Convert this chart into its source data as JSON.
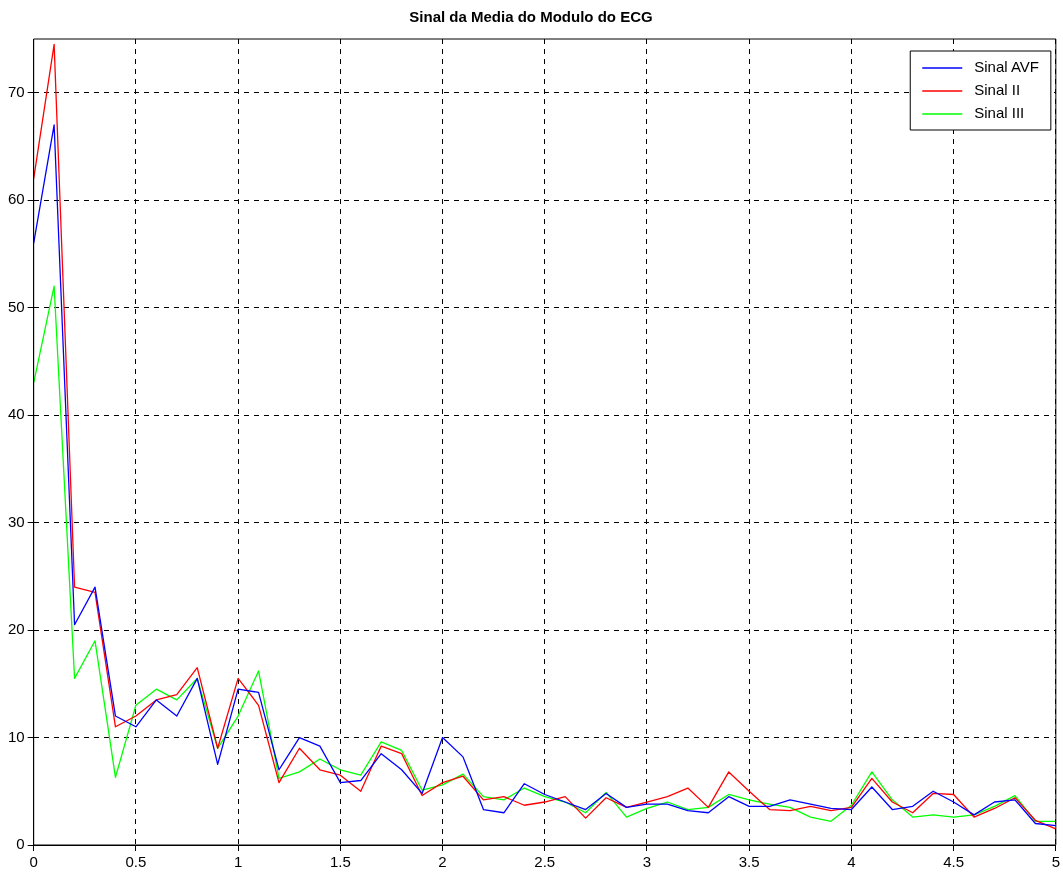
{
  "chart_data": {
    "type": "line",
    "title": "Sinal da Media do Modulo do ECG",
    "x": [
      0,
      0.1,
      0.2,
      0.3,
      0.4,
      0.5,
      0.6,
      0.7,
      0.8,
      0.9,
      1,
      1.1,
      1.2,
      1.3,
      1.4,
      1.5,
      1.6,
      1.7,
      1.8,
      1.9,
      2,
      2.1,
      2.2,
      2.3,
      2.4,
      2.5,
      2.6,
      2.7,
      2.8,
      2.9,
      3,
      3.1,
      3.2,
      3.3,
      3.4,
      3.5,
      3.6,
      3.7,
      3.8,
      3.9,
      4,
      4.1,
      4.2,
      4.3,
      4.4,
      4.5,
      4.6,
      4.7,
      4.8,
      4.9,
      5
    ],
    "series": [
      {
        "name": "Sinal AVF",
        "color": "#0000ff",
        "values": [
          56,
          67,
          20.5,
          24,
          12,
          11,
          13.5,
          12,
          15.5,
          7.5,
          14.5,
          14.2,
          7,
          10,
          9.2,
          5.8,
          6,
          8.5,
          7,
          4.8,
          10,
          8.2,
          3.3,
          3,
          5.7,
          4.7,
          4,
          3.3,
          4.8,
          3.5,
          3.8,
          3.8,
          3.2,
          3,
          4.5,
          3.6,
          3.6,
          4.2,
          3.8,
          3.4,
          3.3,
          5.4,
          3.3,
          3.6,
          5,
          4,
          2.8,
          4,
          4.2,
          2,
          1.8
        ]
      },
      {
        "name": "Sinal II",
        "color": "#ff0000",
        "values": [
          62,
          74.5,
          24,
          23.5,
          11,
          12,
          13.5,
          14,
          16.5,
          9,
          15.5,
          13,
          5.8,
          9,
          7,
          6.5,
          5,
          9.2,
          8.5,
          4.6,
          5.8,
          6.4,
          4.2,
          4.5,
          3.7,
          4,
          4.5,
          2.5,
          4.4,
          3.5,
          4,
          4.5,
          5.3,
          3.5,
          6.8,
          5,
          3.3,
          3.2,
          3.6,
          3.2,
          3.5,
          6.2,
          4,
          3,
          4.8,
          4.7,
          2.6,
          3.4,
          4.4,
          2.3,
          1.5
        ]
      },
      {
        "name": "Sinal III",
        "color": "#00ff00",
        "values": [
          43,
          52,
          15.5,
          19,
          6.3,
          13,
          14.5,
          13.5,
          15.5,
          9,
          12,
          16.2,
          6.2,
          6.8,
          8,
          7,
          6.5,
          9.6,
          8.8,
          5.1,
          5.6,
          6.6,
          4.5,
          4.2,
          5.3,
          4.5,
          4,
          3,
          4.9,
          2.6,
          3.4,
          4,
          3.3,
          3.5,
          4.7,
          4.2,
          3.8,
          3.5,
          2.6,
          2.2,
          3.7,
          6.8,
          4.2,
          2.6,
          2.8,
          2.6,
          2.8,
          3.6,
          4.6,
          2.2,
          2.2
        ]
      }
    ],
    "xlim": [
      0,
      5
    ],
    "xticks": [
      0,
      0.5,
      1,
      1.5,
      2,
      2.5,
      3,
      3.5,
      4,
      4.5,
      5
    ],
    "ylim": [
      0,
      75
    ],
    "yticks": [
      0,
      10,
      20,
      30,
      40,
      50,
      60,
      70
    ],
    "grid": true,
    "legend": "top right",
    "marker": "none",
    "line_style": "solid"
  }
}
